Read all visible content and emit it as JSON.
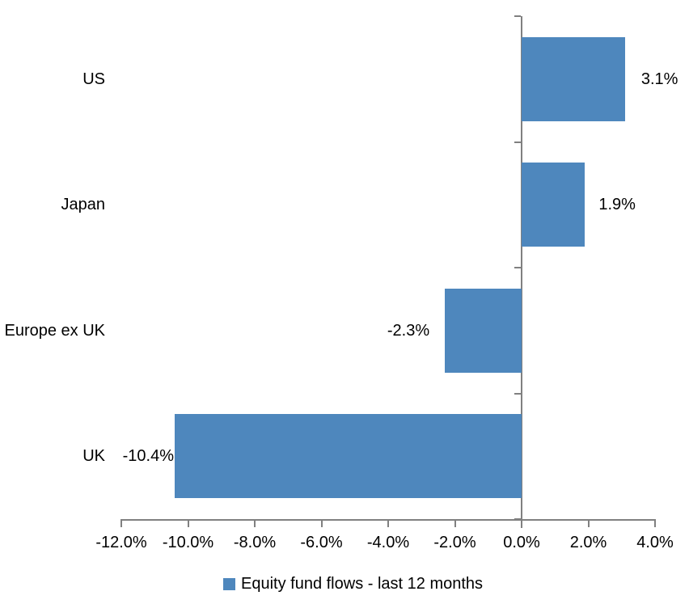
{
  "chart_data": {
    "type": "bar",
    "orientation": "horizontal",
    "categories": [
      "US",
      "Japan",
      "Europe ex UK",
      "UK"
    ],
    "values": [
      3.1,
      1.9,
      -2.3,
      -10.4
    ],
    "value_labels": [
      "3.1%",
      "1.9%",
      "-2.3%",
      "-10.4%"
    ],
    "series": [
      {
        "name": "Equity fund flows - last 12 months",
        "values": [
          3.1,
          1.9,
          -2.3,
          -10.4
        ]
      }
    ],
    "title": "",
    "xlabel": "",
    "ylabel": "",
    "xlim": [
      -12,
      4
    ],
    "x_tick_labels": [
      "-12.0%",
      "-10.0%",
      "-8.0%",
      "-6.0%",
      "-4.0%",
      "-2.0%",
      "0.0%",
      "2.0%",
      "4.0%"
    ],
    "grid": false,
    "legend_position": "bottom",
    "bar_color": "#4E87BD",
    "axis_color": "#808080",
    "text_color": "#000000",
    "background_color": "#FFFFFF"
  },
  "legend": {
    "label": "Equity fund flows - last 12 months",
    "marker_color": "#4E87BD"
  }
}
